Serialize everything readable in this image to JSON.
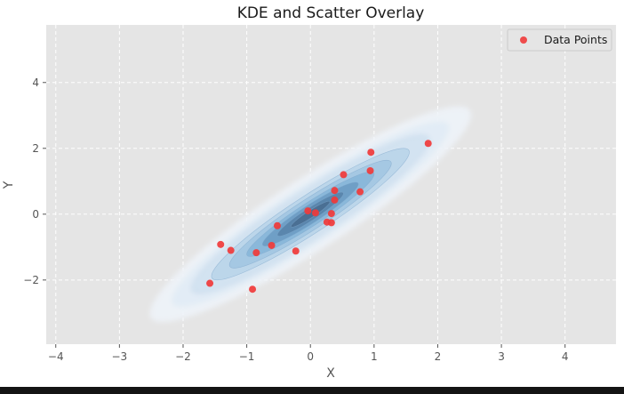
{
  "chart_data": {
    "type": "scatter",
    "title": "KDE and Scatter Overlay",
    "xlabel": "X",
    "ylabel": "Y",
    "xlim": [
      -4.15,
      4.8
    ],
    "ylim": [
      -3.95,
      5.75
    ],
    "xticks": [
      -4,
      -3,
      -2,
      -1,
      0,
      1,
      2,
      3,
      4
    ],
    "yticks": [
      -2,
      0,
      2,
      4
    ],
    "grid": true,
    "legend": {
      "position": "top-right",
      "entries": [
        "Data Points"
      ]
    },
    "kde": {
      "center": [
        0.0,
        0.0
      ],
      "orientation_deg": 33,
      "colormap": "Blues",
      "alpha": 0.6
    },
    "series": [
      {
        "name": "Data Points",
        "color": "#f03a3a",
        "points": [
          {
            "x": 1.85,
            "y": 2.15
          },
          {
            "x": 0.95,
            "y": 1.88
          },
          {
            "x": 0.52,
            "y": 1.2
          },
          {
            "x": 0.94,
            "y": 1.32
          },
          {
            "x": 0.38,
            "y": 0.72
          },
          {
            "x": 0.78,
            "y": 0.68
          },
          {
            "x": 0.38,
            "y": 0.43
          },
          {
            "x": -0.04,
            "y": 0.1
          },
          {
            "x": 0.08,
            "y": 0.04
          },
          {
            "x": 0.33,
            "y": 0.02
          },
          {
            "x": 0.26,
            "y": -0.24
          },
          {
            "x": 0.33,
            "y": -0.26
          },
          {
            "x": -0.52,
            "y": -0.35
          },
          {
            "x": -0.61,
            "y": -0.95
          },
          {
            "x": -1.41,
            "y": -0.92
          },
          {
            "x": -1.25,
            "y": -1.1
          },
          {
            "x": -0.85,
            "y": -1.17
          },
          {
            "x": -0.23,
            "y": -1.12
          },
          {
            "x": -1.58,
            "y": -2.1
          },
          {
            "x": -0.91,
            "y": -2.28
          }
        ]
      }
    ]
  }
}
